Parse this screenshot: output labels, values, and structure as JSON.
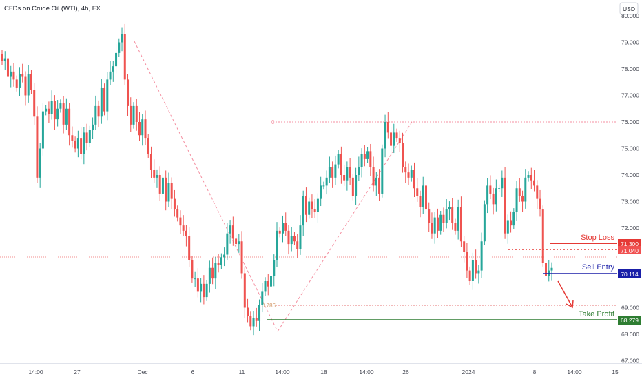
{
  "header": {
    "symbol_title": "CFDs on Crude Oil (WTI), 4h, FX",
    "currency": "USD"
  },
  "colors": {
    "up": "#26a69a",
    "down": "#ef5350",
    "stop_loss": "#e53935",
    "sell_entry": "#1a1fa8",
    "take_profit": "#2e7d32",
    "price_line": "#f06a6a",
    "fib": "#f48fa0"
  },
  "chart_data": {
    "type": "candlestick",
    "title": "CFDs on Crude Oil (WTI), 4h, FX",
    "ylim": [
      66.8,
      80.5
    ],
    "y_ticks": [
      "80.000",
      "79.000",
      "78.000",
      "77.000",
      "76.000",
      "75.000",
      "74.000",
      "73.000",
      "72.000",
      "69.000",
      "68.000",
      "67.000"
    ],
    "x_ticks": [
      "14:00",
      "27",
      "Dec",
      "6",
      "11",
      "14:00",
      "18",
      "14:00",
      "26",
      "2024",
      "8",
      "14:00",
      "15"
    ],
    "candles_close": [
      78.3,
      78.4,
      77.7,
      77.9,
      77.6,
      77.3,
      77.8,
      77.7,
      77.0,
      77.8,
      77.2,
      76.2,
      73.9,
      75.0,
      76.4,
      76.5,
      76.3,
      76.8,
      76.1,
      76.5,
      76.7,
      75.9,
      76.5,
      75.5,
      75.3,
      75.0,
      75.4,
      74.8,
      75.6,
      75.2,
      75.7,
      75.9,
      76.6,
      76.2,
      77.3,
      76.4,
      77.6,
      77.9,
      78.1,
      78.6,
      79.0,
      79.3,
      77.6,
      76.6,
      75.9,
      76.6,
      76.0,
      75.5,
      76.1,
      75.4,
      74.8,
      74.2,
      73.9,
      74.0,
      73.3,
      73.9,
      73.0,
      73.7,
      73.1,
      72.7,
      72.4,
      72.1,
      71.9,
      71.7,
      70.8,
      70.1,
      70.1,
      69.6,
      69.9,
      69.4,
      69.9,
      70.5,
      70.1,
      70.7,
      70.6,
      70.9,
      71.0,
      71.8,
      72.1,
      71.6,
      71.4,
      71.5,
      70.3,
      69.0,
      68.7,
      68.3,
      68.6,
      68.5,
      69.1,
      69.6,
      70.0,
      69.8,
      70.2,
      70.8,
      71.9,
      71.8,
      72.2,
      71.9,
      71.4,
      71.7,
      71.5,
      71.2,
      72.1,
      73.2,
      72.5,
      73.0,
      72.7,
      72.6,
      73.1,
      73.6,
      73.6,
      73.9,
      74.3,
      73.9,
      74.4,
      74.8,
      74.0,
      73.8,
      74.3,
      73.9,
      73.2,
      74.0,
      74.3,
      74.8,
      74.6,
      74.9,
      74.3,
      73.6,
      73.9,
      73.3,
      75.0,
      76.0,
      75.6,
      75.1,
      75.6,
      75.4,
      75.2,
      74.3,
      74.1,
      73.9,
      74.2,
      73.5,
      73.2,
      72.8,
      73.6,
      72.7,
      72.2,
      71.8,
      72.4,
      71.9,
      72.5,
      72.2,
      72.7,
      72.8,
      72.2,
      71.9,
      72.8,
      71.5,
      71.1,
      70.4,
      70.0,
      70.8,
      70.3,
      70.4,
      71.5,
      72.9,
      73.6,
      73.3,
      72.9,
      73.5,
      73.5,
      73.9,
      71.8,
      72.3,
      72.1,
      72.6,
      73.5,
      73.2,
      73.0,
      73.9,
      74.0,
      73.8,
      73.6,
      73.1,
      72.7,
      70.7,
      70.2,
      70.4,
      70.5
    ],
    "levels": {
      "stop_loss": {
        "label": "Stop Loss",
        "price": "71.300"
      },
      "current_price": {
        "price": "71.040"
      },
      "sell_entry": {
        "label": "Sell Entry",
        "price": "70.114"
      },
      "take_profit": {
        "label": "Take Profit",
        "price": "68.279"
      }
    },
    "fib": {
      "level_0_label": "0",
      "level_1_label": "0.786"
    }
  }
}
